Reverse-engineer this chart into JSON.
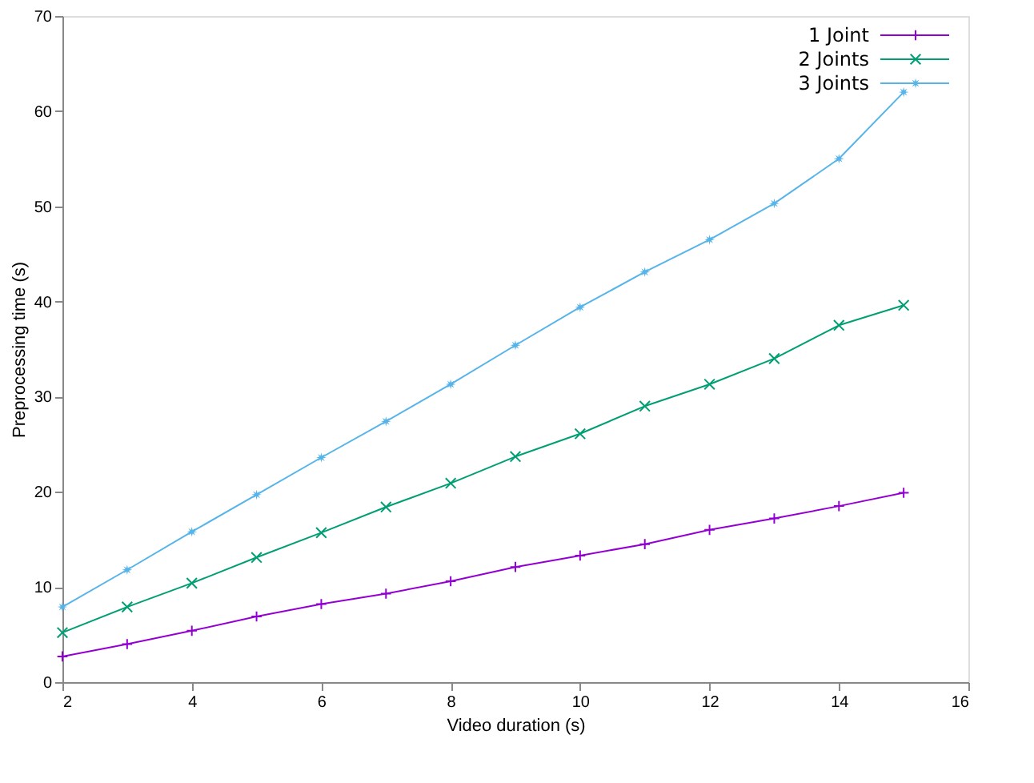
{
  "chart_data": {
    "type": "line",
    "xlabel": "Video duration (s)",
    "ylabel": "Preprocessing time (s)",
    "x": [
      2,
      3,
      4,
      5,
      6,
      7,
      8,
      9,
      10,
      11,
      12,
      13,
      14,
      15
    ],
    "xlim": [
      2,
      16
    ],
    "xticks": [
      2,
      4,
      6,
      8,
      10,
      12,
      14,
      16
    ],
    "ylim": [
      0,
      70
    ],
    "yticks": [
      0,
      10,
      20,
      30,
      40,
      50,
      60,
      70
    ],
    "grid": false,
    "legend": "top right",
    "series": [
      {
        "name": "1 Joint",
        "color": "#9400d3",
        "marker": "plus",
        "values": [
          2.7,
          4.0,
          5.4,
          6.9,
          8.2,
          9.3,
          10.6,
          12.1,
          13.3,
          14.5,
          16.0,
          17.2,
          18.5,
          19.9
        ]
      },
      {
        "name": "2 Joints",
        "color": "#009e73",
        "marker": "x",
        "values": [
          5.2,
          7.9,
          10.4,
          13.1,
          15.7,
          18.4,
          20.9,
          23.7,
          26.1,
          29.0,
          31.3,
          34.0,
          37.5,
          39.6
        ]
      },
      {
        "name": "3 Joints",
        "color": "#56b4e9",
        "marker": "star",
        "values": [
          7.9,
          11.8,
          15.8,
          19.7,
          23.6,
          27.4,
          31.3,
          35.4,
          39.4,
          43.1,
          46.5,
          50.3,
          55.0,
          62.0
        ]
      }
    ]
  }
}
